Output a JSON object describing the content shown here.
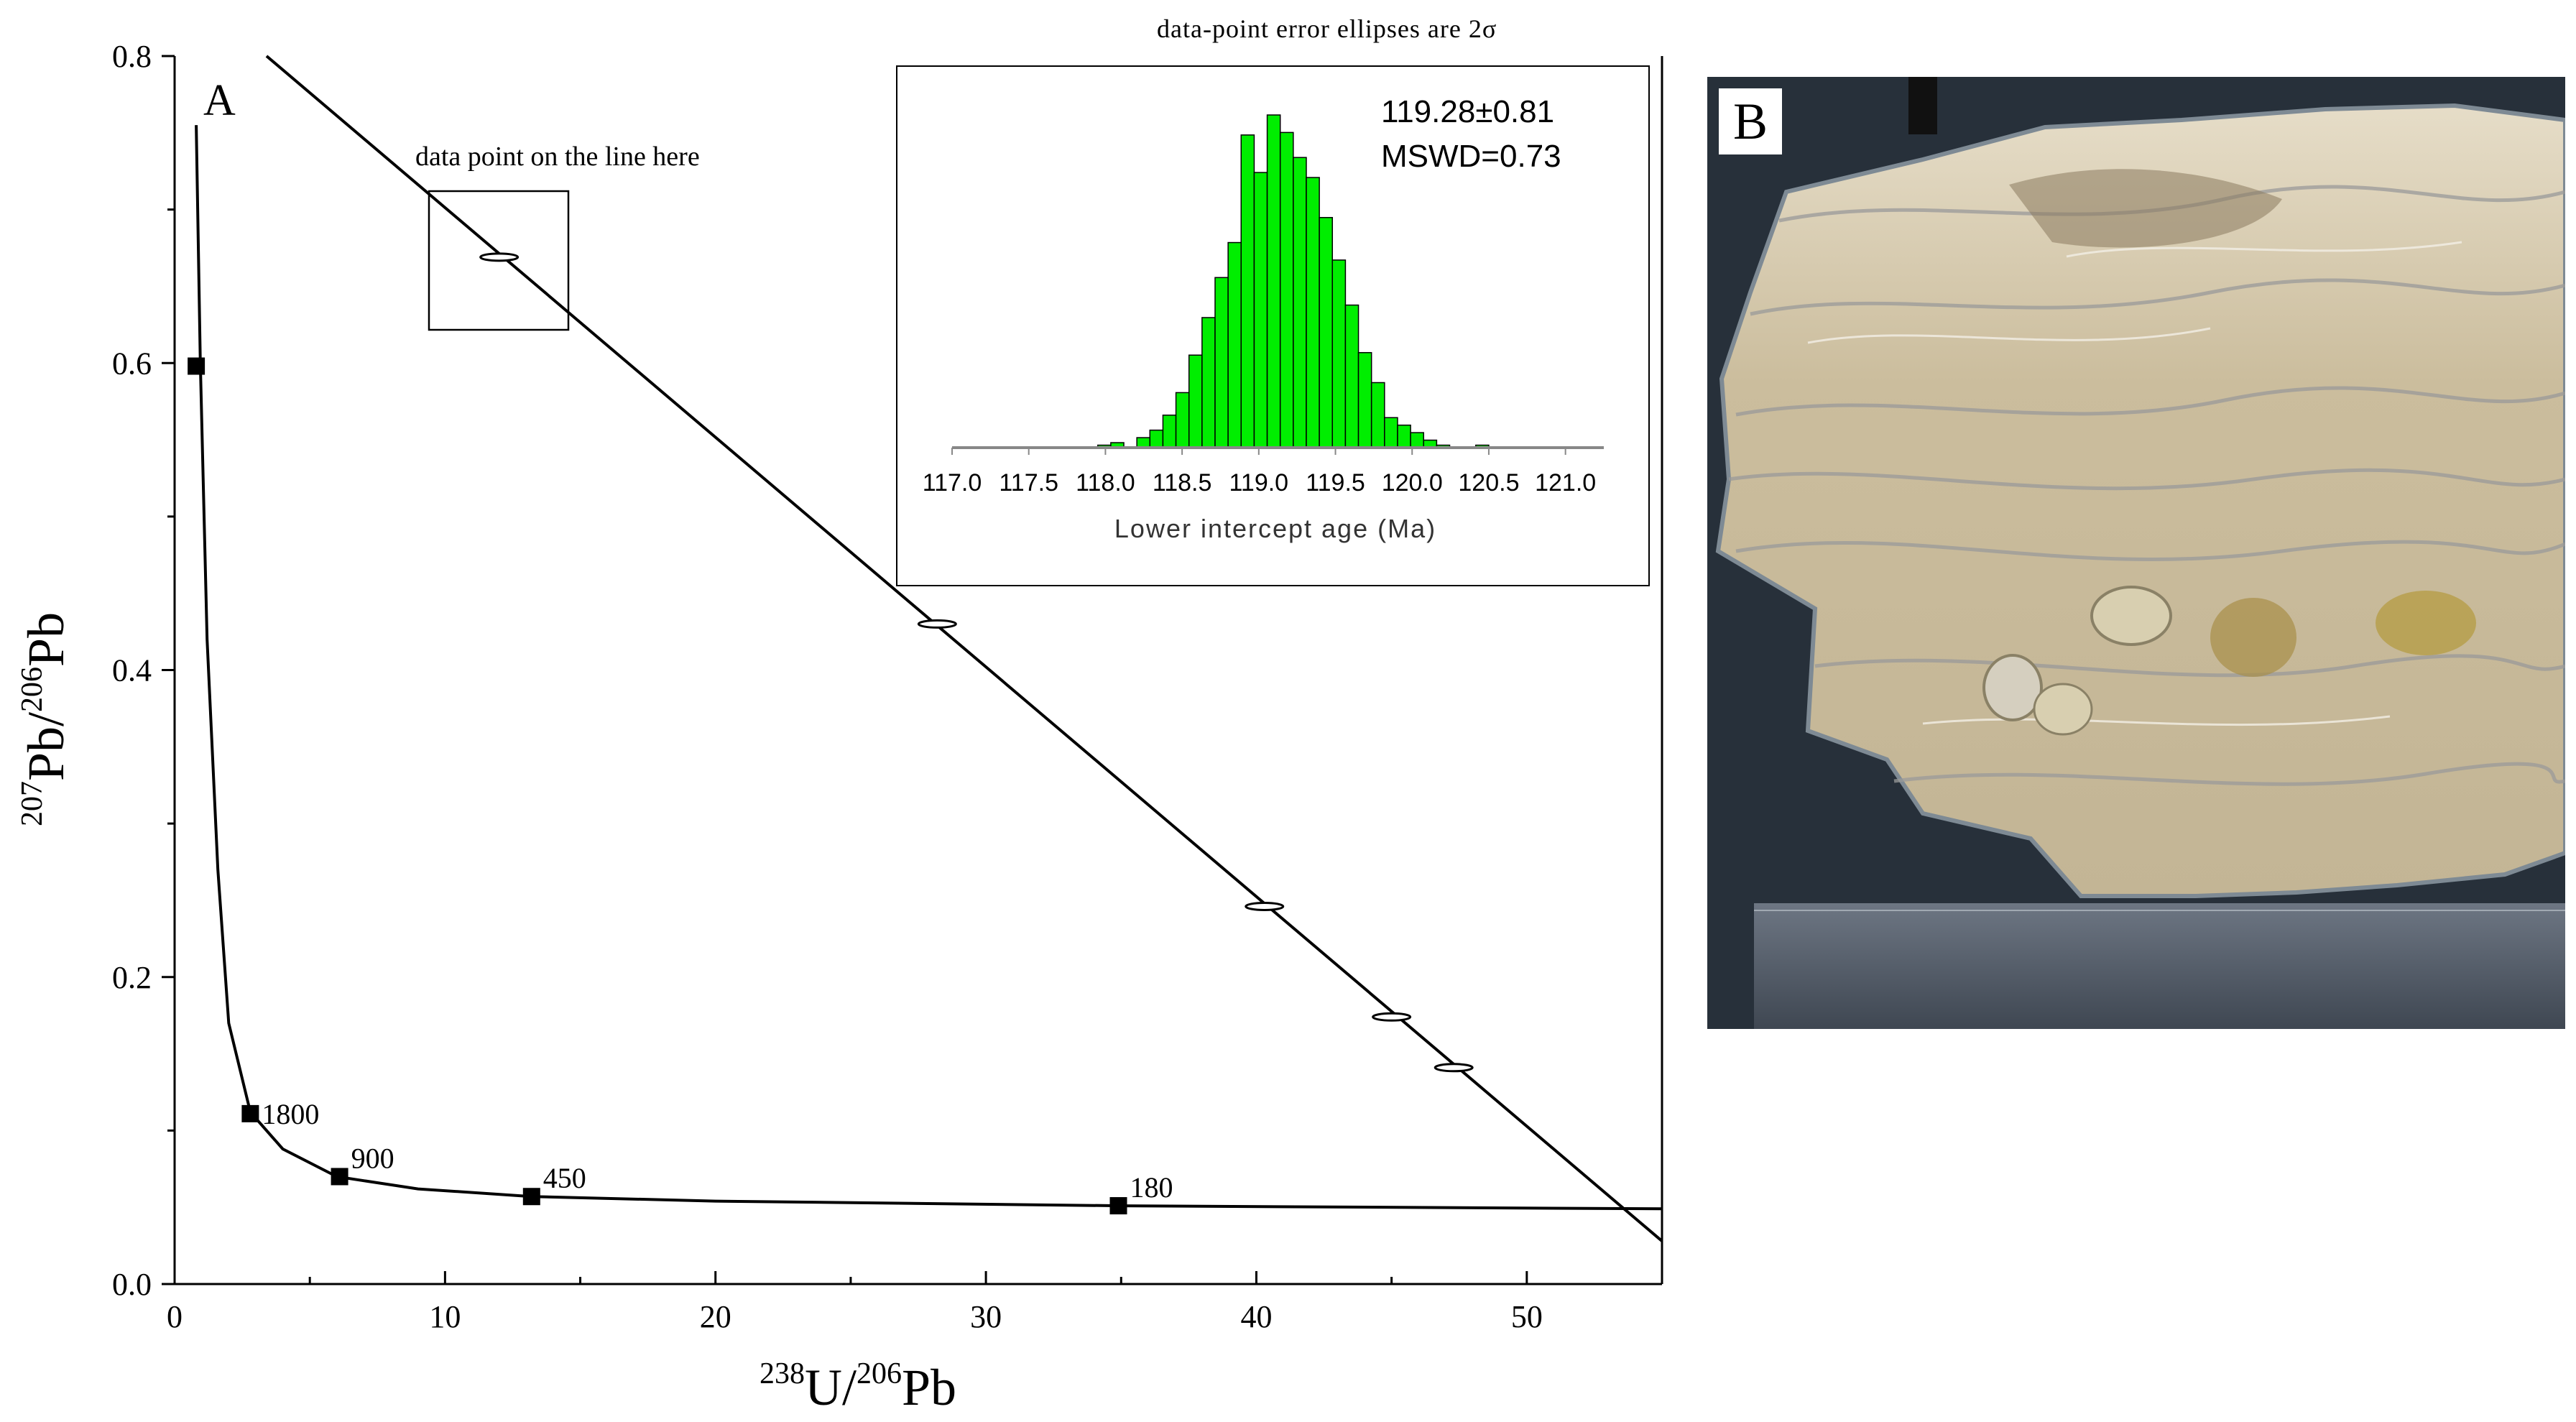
{
  "chart_data": [
    {
      "panel": "A",
      "type": "scatter",
      "xlabel": "238U/206Pb",
      "ylabel": "207Pb/206Pb",
      "xlim": [
        0,
        55
      ],
      "ylim": [
        0,
        0.8
      ],
      "xticks": [
        0,
        10,
        20,
        30,
        40,
        50
      ],
      "yticks": [
        0.0,
        0.2,
        0.4,
        0.6,
        0.8
      ],
      "title_note": "data-point error ellipses are 2σ",
      "annotation": "data point on the line here",
      "concordia": {
        "x": [
          0.8,
          0.95,
          1.2,
          1.6,
          2.0,
          2.8,
          4.0,
          6.0,
          9.0,
          13.2,
          20,
          35,
          55
        ],
        "y": [
          0.755,
          0.6,
          0.42,
          0.27,
          0.17,
          0.112,
          0.088,
          0.07,
          0.062,
          0.057,
          0.054,
          0.051,
          0.049
        ]
      },
      "age_markers": [
        {
          "label": "",
          "x": 0.8,
          "y": 0.598
        },
        {
          "label": "1800",
          "x": 2.8,
          "y": 0.111
        },
        {
          "label": "900",
          "x": 6.1,
          "y": 0.07
        },
        {
          "label": "450",
          "x": 13.2,
          "y": 0.057
        },
        {
          "label": "180",
          "x": 34.9,
          "y": 0.051
        }
      ],
      "regression_line": {
        "x": [
          3.4,
          55
        ],
        "y": [
          0.8,
          0.028
        ]
      },
      "data_points": [
        {
          "x": 12.0,
          "y": 0.669
        },
        {
          "x": 28.2,
          "y": 0.43
        },
        {
          "x": 40.3,
          "y": 0.246
        },
        {
          "x": 45.0,
          "y": 0.174
        },
        {
          "x": 47.3,
          "y": 0.141
        }
      ]
    },
    {
      "type": "bar",
      "xlabel": "Lower intercept age (Ma)",
      "xlim": [
        117.0,
        121.25
      ],
      "xticks": [
        117.0,
        117.5,
        118.0,
        118.5,
        119.0,
        119.5,
        120.0,
        120.5,
        121.0
      ],
      "result": "119.28±0.81",
      "mswd": "MSWD=0.73",
      "bin_width": 0.085,
      "bins_start": [
        117.95,
        118.035,
        118.12,
        118.205,
        118.29,
        118.375,
        118.46,
        118.545,
        118.63,
        118.715,
        118.8,
        118.885,
        118.97,
        119.055,
        119.14,
        119.225,
        119.31,
        119.395,
        119.48,
        119.565,
        119.65,
        119.735,
        119.82,
        119.905,
        119.99,
        120.075,
        120.16,
        120.245,
        120.33,
        120.415,
        120.5,
        120.585,
        120.67
      ],
      "counts": [
        1,
        2,
        0,
        4,
        7,
        13,
        22,
        37,
        52,
        68,
        82,
        125,
        110,
        133,
        126,
        116,
        108,
        92,
        75,
        57,
        38,
        26,
        12,
        9,
        6,
        3,
        1,
        0,
        0,
        1,
        0,
        0,
        0
      ]
    }
  ],
  "figure": {
    "panel_a_label": "A",
    "panel_b_label": "B",
    "note_text": "data-point error ellipses are 2σ",
    "callout_text": "data point on the line here",
    "inset_result": "119.28±0.81",
    "inset_mswd": "MSWD=0.73",
    "inset_xlabel": "Lower intercept age (Ma)",
    "xlabel_parts": {
      "sup1": "238",
      "main1": "U/",
      "sup2": "206",
      "main2": "Pb"
    },
    "ylabel_parts": {
      "sup1": "207",
      "main1": "Pb/",
      "sup2": "206",
      "main2": "Pb"
    }
  },
  "colors": {
    "histogram_fill": "#00ee00",
    "axes": "#000000",
    "histogram_axis": "#888888",
    "photo_background": "#27303a",
    "rock": "#c9b99a"
  }
}
